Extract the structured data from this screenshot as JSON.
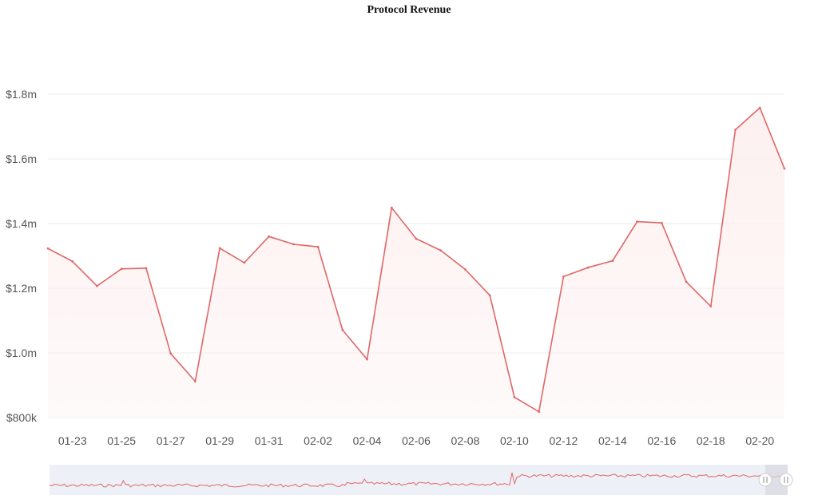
{
  "chart_data": {
    "type": "area",
    "title": "Protocol Revenue",
    "xlabel": "",
    "ylabel": "",
    "x_tick_labels": [
      "01-23",
      "01-25",
      "01-27",
      "01-29",
      "01-31",
      "02-02",
      "02-04",
      "02-06",
      "02-08",
      "02-10",
      "02-12",
      "02-14",
      "02-16",
      "02-18",
      "02-20"
    ],
    "y_tick_labels": [
      "$800k",
      "$1.0m",
      "$1.2m",
      "$1.4m",
      "$1.6m",
      "$1.8m"
    ],
    "y_ticks": [
      800000,
      1000000,
      1200000,
      1400000,
      1600000,
      1800000
    ],
    "ylim": [
      800000,
      1800000
    ],
    "grid": true,
    "line_color": "#e06666",
    "fill_color": "#fdf0f0",
    "x": [
      "01-22",
      "01-23",
      "01-24",
      "01-25",
      "01-26",
      "01-27",
      "01-28",
      "01-29",
      "01-30",
      "01-31",
      "02-01",
      "02-02",
      "02-03",
      "02-04",
      "02-05",
      "02-06",
      "02-07",
      "02-08",
      "02-09",
      "02-10",
      "02-11",
      "02-12",
      "02-13",
      "02-14",
      "02-15",
      "02-16",
      "02-17",
      "02-18",
      "02-19",
      "02-20",
      "02-21"
    ],
    "series": [
      {
        "values": [
          1323000,
          1283000,
          1207000,
          1260000,
          1262000,
          998000,
          912000,
          1324000,
          1279000,
          1360000,
          1336000,
          1328000,
          1071000,
          980000,
          1449000,
          1353000,
          1317000,
          1258000,
          1178000,
          863000,
          818000,
          1236000,
          1264000,
          1285000,
          1406000,
          1402000,
          1220000,
          1144000,
          1690000,
          1758000,
          1570000
        ]
      }
    ],
    "navigator": {
      "present": true,
      "handle_color": "#d8d8e0"
    }
  }
}
